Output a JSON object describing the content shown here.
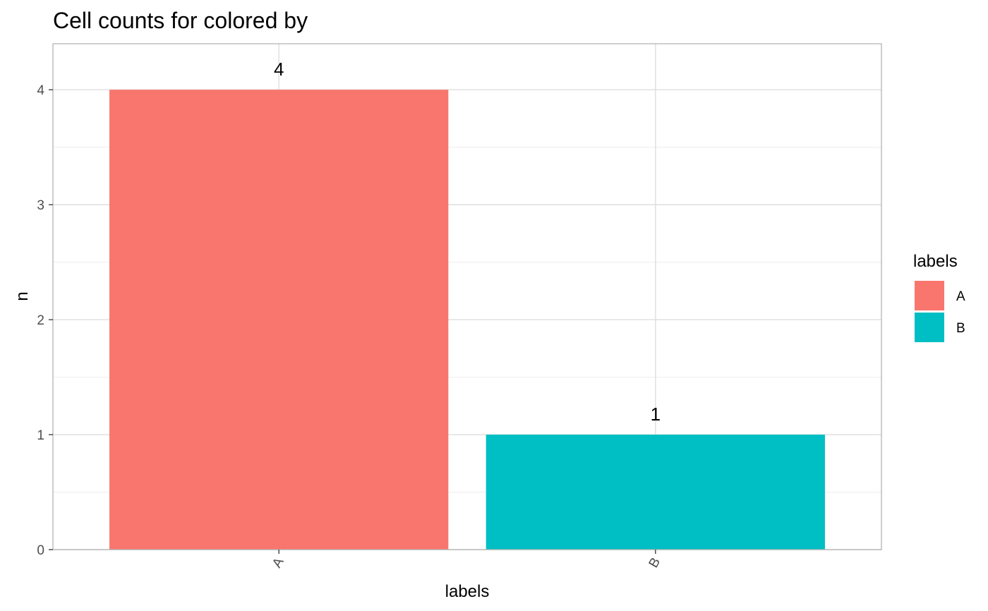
{
  "chart_data": {
    "type": "bar",
    "title": "Cell counts for  colored by",
    "xlabel": "labels",
    "ylabel": "n",
    "categories": [
      "A",
      "B"
    ],
    "values": [
      4,
      1
    ],
    "data_labels": [
      "4",
      "1"
    ],
    "colors": [
      "#F8766D",
      "#00BFC4"
    ],
    "ylim": [
      0,
      4.4
    ],
    "yticks": [
      0,
      1,
      2,
      3,
      4
    ],
    "grid": true,
    "legend": {
      "title": "labels",
      "placement": "right",
      "entries": [
        "A",
        "B"
      ]
    }
  }
}
